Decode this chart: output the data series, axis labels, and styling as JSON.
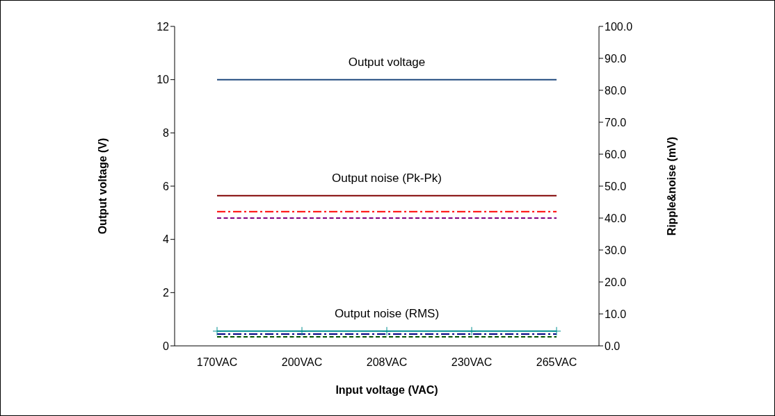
{
  "chart_data": {
    "type": "line",
    "xlabel": "Input voltage (VAC)",
    "ylabel": "Output voltage (V)",
    "y2label": "Ripple&noise (mV)",
    "categories": [
      "170VAC",
      "200VAC",
      "208VAC",
      "230VAC",
      "265VAC"
    ],
    "ylim": [
      0,
      12
    ],
    "yticks": [
      0,
      2,
      4,
      6,
      8,
      10,
      12
    ],
    "y2lim": [
      0,
      100
    ],
    "y2ticks": [
      {
        "value": 0,
        "label": "0.0"
      },
      {
        "value": 10,
        "label": "10.0"
      },
      {
        "value": 20,
        "label": "20.0"
      },
      {
        "value": 30,
        "label": "30.0"
      },
      {
        "value": 40,
        "label": "40.0"
      },
      {
        "value": 50,
        "label": "50.0"
      },
      {
        "value": 60,
        "label": "60.0"
      },
      {
        "value": 70,
        "label": "70.0"
      },
      {
        "value": 80,
        "label": "80.0"
      },
      {
        "value": 90,
        "label": "90.0"
      },
      {
        "value": 100,
        "label": "100.0"
      }
    ],
    "grid": false,
    "legend": false,
    "series": [
      {
        "color": "#1f497d",
        "values": [
          10,
          10,
          10,
          10,
          10
        ],
        "line_style": "solid"
      },
      {
        "color": "#800000",
        "values": [
          47,
          47,
          47,
          47,
          47
        ],
        "axis": "y2",
        "line_style": "solid"
      },
      {
        "color": "#ff0000",
        "values": [
          42,
          42,
          42,
          42,
          42
        ],
        "axis": "y2",
        "line_style": "dashdot"
      },
      {
        "color": "#800080",
        "values": [
          40,
          40,
          40,
          40,
          40
        ],
        "axis": "y2",
        "line_style": "dashed"
      },
      {
        "color": "#009090",
        "values": [
          4.6,
          4.6,
          4.6,
          4.6,
          4.6
        ],
        "axis": "y2",
        "line_style": "solid",
        "marker": "cross"
      },
      {
        "color": "#000080",
        "values": [
          3.7,
          3.7,
          3.7,
          3.7,
          3.7
        ],
        "axis": "y2",
        "line_style": "dashdot"
      },
      {
        "color": "#005000",
        "values": [
          2.8,
          2.8,
          2.8,
          2.8,
          2.8
        ],
        "axis": "y2",
        "line_style": "dashed"
      }
    ],
    "annotations": [
      "Output voltage",
      "Output noise (Pk-Pk)",
      "Output noise (RMS)"
    ]
  }
}
